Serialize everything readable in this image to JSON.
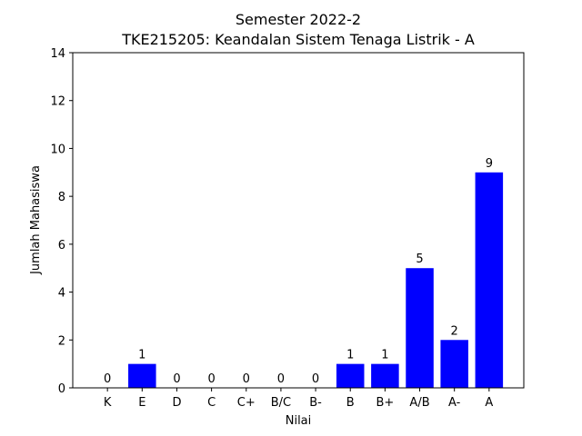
{
  "chart_data": {
    "type": "bar",
    "title_line1": "Semester 2022-2",
    "title_line2": "TKE215205: Keandalan Sistem Tenaga Listrik - A",
    "xlabel": "Nilai",
    "ylabel": "Jumlah Mahasiswa",
    "categories": [
      "K",
      "E",
      "D",
      "C",
      "C+",
      "B/C",
      "B-",
      "B",
      "B+",
      "A/B",
      "A-",
      "A"
    ],
    "values": [
      0,
      1,
      0,
      0,
      0,
      0,
      0,
      1,
      1,
      5,
      2,
      9
    ],
    "ylim": [
      0,
      14
    ],
    "yticks": [
      0,
      2,
      4,
      6,
      8,
      10,
      12,
      14
    ],
    "bar_color": "#0000ff",
    "grid": false,
    "legend": "none"
  }
}
